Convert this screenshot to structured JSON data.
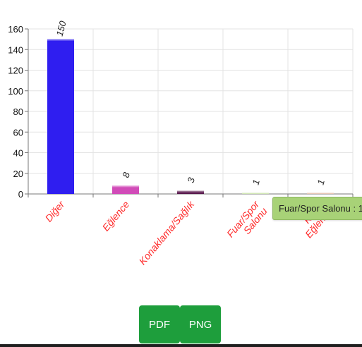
{
  "chart_data": {
    "type": "bar",
    "categories": [
      "Diğer",
      "Eğlence",
      "Konaklama/Sağlık",
      "Fuar/Spor Salonu",
      "Kültür Eğlence"
    ],
    "category_lines": [
      [
        "Diğer"
      ],
      [
        "Eğlence"
      ],
      [
        "Konaklama/Sağlık"
      ],
      [
        "Fuar/Spor",
        "Salonu"
      ],
      [
        "Kültür",
        "Eğlence"
      ]
    ],
    "values": [
      150,
      8,
      3,
      1,
      1
    ],
    "colors": [
      "#2f1ef0",
      "#d14bb8",
      "#5a1a4e",
      "#b9d98e",
      "#d9a88e"
    ],
    "ylim": [
      0,
      160
    ],
    "yticks": [
      0,
      20,
      40,
      60,
      80,
      100,
      120,
      140,
      160
    ],
    "grid": true,
    "label_color": "#ff2a2a",
    "tooltip": "Fuar/Spor Salonu : 1"
  },
  "buttons": {
    "pdf": "PDF",
    "png": "PNG"
  }
}
